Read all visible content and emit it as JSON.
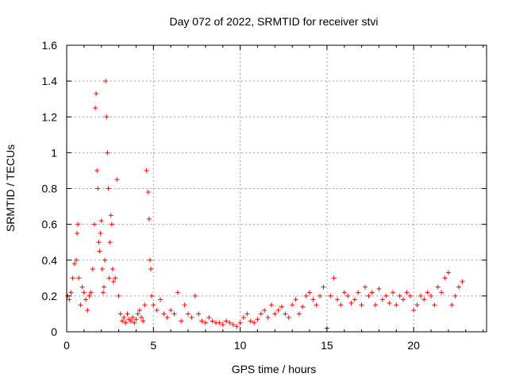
{
  "chart_data": {
    "type": "scatter",
    "title": "Day 072 of 2022, SRMTID for receiver stvi",
    "xlabel": "GPS time / hours",
    "ylabel": "SRMTID / TECUs",
    "xlim": [
      0,
      24.2
    ],
    "ylim": [
      0,
      1.6
    ],
    "xticks": [
      0,
      5,
      10,
      15,
      20
    ],
    "yticks": [
      0,
      0.2,
      0.4,
      0.6,
      0.8,
      1,
      1.2,
      1.4,
      1.6
    ],
    "xtick_labels": [
      "0",
      "5",
      "10",
      "15",
      "20"
    ],
    "ytick_labels": [
      "0",
      "0.2",
      "0.4",
      "0.6",
      "0.8",
      "1",
      "1.2",
      "1.4",
      "1.6"
    ],
    "grid": true,
    "marker": "+",
    "marker_color": "#ff0000",
    "x": [
      0.05,
      0.15,
      0.25,
      0.35,
      0.45,
      0.55,
      0.6,
      0.65,
      0.7,
      0.8,
      0.9,
      1.0,
      1.1,
      1.2,
      1.3,
      1.4,
      1.5,
      1.6,
      1.65,
      1.7,
      1.75,
      1.8,
      1.85,
      1.9,
      1.95,
      2.0,
      2.05,
      2.1,
      2.15,
      2.2,
      2.25,
      2.3,
      2.35,
      2.4,
      2.45,
      2.5,
      2.55,
      2.6,
      2.65,
      2.7,
      2.8,
      2.9,
      3.0,
      3.1,
      3.2,
      3.3,
      3.4,
      3.5,
      3.6,
      3.7,
      3.8,
      3.9,
      4.0,
      4.1,
      4.2,
      4.3,
      4.4,
      4.5,
      4.6,
      4.7,
      4.75,
      4.8,
      4.85,
      4.9,
      5.0,
      5.2,
      5.4,
      5.6,
      5.8,
      6.0,
      6.2,
      6.4,
      6.6,
      6.8,
      7.0,
      7.2,
      7.4,
      7.6,
      7.8,
      8.0,
      8.2,
      8.4,
      8.6,
      8.8,
      9.0,
      9.2,
      9.4,
      9.6,
      9.8,
      10.0,
      10.2,
      10.4,
      10.6,
      10.8,
      11.0,
      11.2,
      11.4,
      11.6,
      11.8,
      12.0,
      12.2,
      12.4,
      12.6,
      12.8,
      13.0,
      13.2,
      13.4,
      13.6,
      13.8,
      14.0,
      14.2,
      14.4,
      14.6,
      14.8,
      15.0,
      15.2,
      15.4,
      15.6,
      15.8,
      16.0,
      16.2,
      16.4,
      16.6,
      16.8,
      17.0,
      17.2,
      17.4,
      17.6,
      17.8,
      18.0,
      18.2,
      18.4,
      18.6,
      18.8,
      19.0,
      19.2,
      19.4,
      19.6,
      19.8,
      20.0,
      20.2,
      20.4,
      20.6,
      20.8,
      21.0,
      21.2,
      21.4,
      21.6,
      21.8,
      22.0,
      22.2,
      22.4,
      22.6,
      22.8
    ],
    "y": [
      0.2,
      0.18,
      0.22,
      0.3,
      0.38,
      0.4,
      0.55,
      0.6,
      0.3,
      0.15,
      0.25,
      0.22,
      0.18,
      0.12,
      0.2,
      0.22,
      0.35,
      0.6,
      1.25,
      1.33,
      0.9,
      0.8,
      0.5,
      0.45,
      0.55,
      0.62,
      0.35,
      0.22,
      0.25,
      0.4,
      1.4,
      1.2,
      1.0,
      0.8,
      0.3,
      0.5,
      0.65,
      0.6,
      0.35,
      0.28,
      0.3,
      0.85,
      0.2,
      0.1,
      0.06,
      0.08,
      0.05,
      0.1,
      0.07,
      0.06,
      0.08,
      0.05,
      0.07,
      0.1,
      0.12,
      0.08,
      0.06,
      0.15,
      0.9,
      0.78,
      0.63,
      0.4,
      0.35,
      0.2,
      0.15,
      0.12,
      0.18,
      0.1,
      0.08,
      0.12,
      0.1,
      0.22,
      0.06,
      0.15,
      0.1,
      0.08,
      0.2,
      0.1,
      0.06,
      0.05,
      0.08,
      0.06,
      0.05,
      0.05,
      0.04,
      0.06,
      0.05,
      0.04,
      0.03,
      0.05,
      0.08,
      0.1,
      0.06,
      0.05,
      0.07,
      0.1,
      0.12,
      0.08,
      0.15,
      0.1,
      0.12,
      0.14,
      0.1,
      0.08,
      0.15,
      0.18,
      0.1,
      0.14,
      0.2,
      0.22,
      0.18,
      0.15,
      0.2,
      0.25,
      0.02,
      0.2,
      0.3,
      0.18,
      0.15,
      0.22,
      0.2,
      0.16,
      0.18,
      0.22,
      0.15,
      0.25,
      0.2,
      0.22,
      0.15,
      0.24,
      0.18,
      0.2,
      0.16,
      0.22,
      0.15,
      0.2,
      0.18,
      0.22,
      0.2,
      0.12,
      0.15,
      0.2,
      0.18,
      0.22,
      0.2,
      0.15,
      0.25,
      0.22,
      0.3,
      0.33,
      0.15,
      0.2,
      0.25,
      0.28
    ]
  }
}
